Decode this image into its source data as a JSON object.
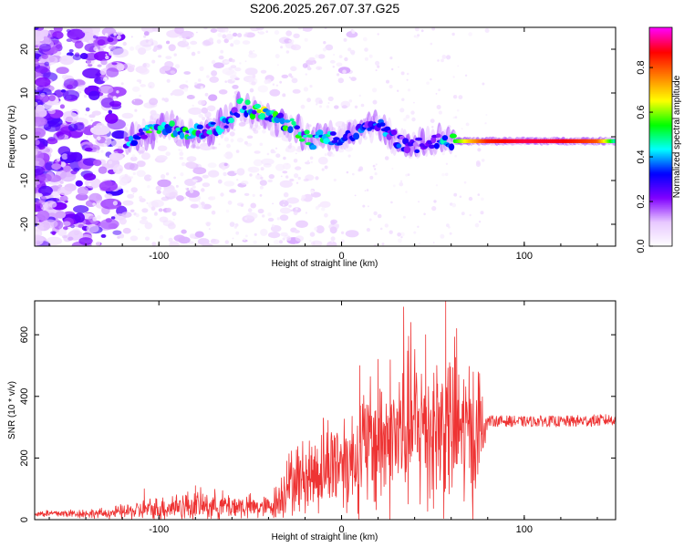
{
  "title": "S206.2025.267.07.37.G25",
  "chart_data": [
    {
      "type": "heatmap",
      "name": "spectrogram",
      "title": "S206.2025.267.07.37.G25",
      "xlabel": "Height of straight line (km)",
      "ylabel": "Frequency (Hz)",
      "xlim": [
        -168,
        150
      ],
      "ylim": [
        -25,
        25
      ],
      "xticks": [
        -100,
        0,
        100
      ],
      "yticks": [
        -20,
        -10,
        0,
        10,
        20
      ],
      "colorbar": {
        "label": "Normalized spectral amplitude",
        "range": [
          0,
          0.98
        ],
        "ticks": [
          "0.0",
          "0.2",
          "0.4",
          "0.6",
          "0.8"
        ],
        "tick_values": [
          0,
          0.2,
          0.4,
          0.6,
          0.8
        ],
        "colors": [
          "#ffffff",
          "#e8c8ff",
          "#8000ff",
          "#0000ff",
          "#00ffff",
          "#00ff00",
          "#ffff00",
          "#ff8000",
          "#ff0000",
          "#ff00ff"
        ]
      },
      "ridge": {
        "x": [
          -118,
          -105,
          -95,
          -85,
          -75,
          -65,
          -55,
          -48,
          -42,
          -36,
          -30,
          -25,
          -20,
          -15,
          -10,
          -5,
          0,
          10,
          20,
          30,
          40,
          50,
          60,
          70,
          80,
          100,
          120,
          140,
          150
        ],
        "y": [
          -1,
          1,
          2,
          1,
          1,
          3,
          7,
          6,
          5,
          4,
          3,
          2,
          0,
          -1,
          0,
          0,
          -1,
          2,
          3,
          -1,
          -2,
          -1,
          -1,
          -1,
          -1,
          -1,
          -1,
          -1,
          -1
        ],
        "amplitude": [
          0.35,
          0.45,
          0.4,
          0.45,
          0.4,
          0.35,
          0.4,
          0.45,
          0.55,
          0.55,
          0.5,
          0.5,
          0.4,
          0.5,
          0.45,
          0.35,
          0.3,
          0.3,
          0.35,
          0.3,
          0.25,
          0.25,
          0.5,
          0.7,
          0.85,
          0.9,
          0.88,
          0.8,
          0.45
        ]
      }
    },
    {
      "type": "line",
      "name": "snr",
      "xlabel": "Height of straight line (km)",
      "ylabel": "SNR (10 * v/v)",
      "xlim": [
        -168,
        150
      ],
      "ylim": [
        0,
        710
      ],
      "xticks": [
        -100,
        0,
        100
      ],
      "yticks": [
        0,
        200,
        400,
        600
      ],
      "color": "#ee3333",
      "envelope": {
        "x": [
          -168,
          -130,
          -110,
          -100,
          -90,
          -80,
          -70,
          -60,
          -50,
          -40,
          -35,
          -30,
          -25,
          -20,
          -15,
          -10,
          -5,
          0,
          5,
          10,
          15,
          20,
          25,
          30,
          35,
          40,
          45,
          50,
          55,
          60,
          65,
          70,
          75,
          80,
          90,
          100,
          110,
          120,
          130,
          140,
          150
        ],
        "mean": [
          20,
          20,
          30,
          35,
          45,
          45,
          45,
          45,
          40,
          40,
          60,
          110,
          130,
          140,
          150,
          170,
          190,
          200,
          190,
          220,
          240,
          250,
          270,
          270,
          290,
          300,
          300,
          300,
          300,
          300,
          290,
          280,
          280,
          320,
          320,
          318,
          320,
          318,
          320,
          322,
          325
        ],
        "spread": [
          15,
          20,
          40,
          50,
          60,
          60,
          60,
          55,
          50,
          45,
          80,
          120,
          140,
          150,
          170,
          190,
          200,
          210,
          220,
          250,
          280,
          300,
          310,
          320,
          330,
          340,
          340,
          350,
          340,
          340,
          320,
          310,
          300,
          30,
          30,
          28,
          30,
          30,
          32,
          32,
          30
        ],
        "peaks": [
          [
            -108,
            100
          ],
          [
            -80,
            110
          ],
          [
            -30,
            190
          ],
          [
            -10,
            330
          ],
          [
            10,
            500
          ],
          [
            20,
            520
          ],
          [
            34,
            690
          ],
          [
            38,
            640
          ],
          [
            46,
            600
          ],
          [
            57,
            710
          ],
          [
            63,
            620
          ]
        ]
      }
    }
  ]
}
